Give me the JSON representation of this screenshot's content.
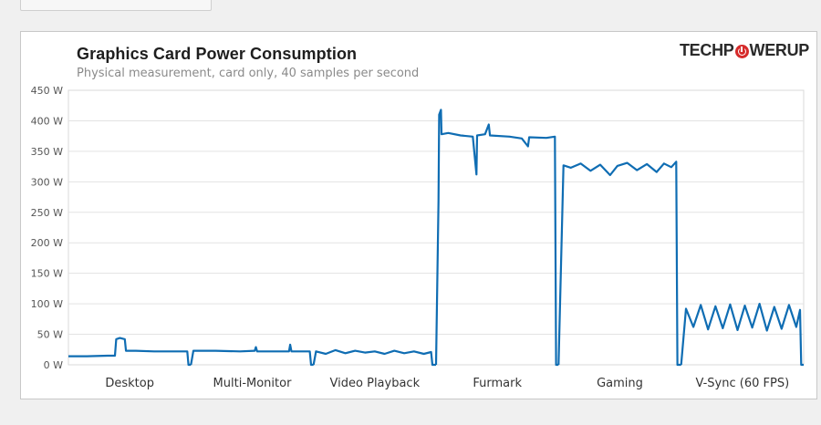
{
  "chart_data": {
    "type": "line",
    "title": "Graphics  Card  Power  Consumption",
    "subtitle": "Physical measurement, card only, 40 samples per second",
    "brand": {
      "left": "TECHP",
      "right": "WERUP",
      "accent": "#d62b2b"
    },
    "xlabel": "",
    "ylabel": "",
    "ylim": [
      0,
      450
    ],
    "yticks": [
      0,
      50,
      100,
      150,
      200,
      250,
      300,
      350,
      400,
      450
    ],
    "ytick_labels": [
      "0 W",
      "50 W",
      "100 W",
      "150 W",
      "200 W",
      "250 W",
      "300 W",
      "350 W",
      "400 W",
      "450 W"
    ],
    "categories": [
      "Desktop",
      "Multi-Monitor",
      "Video Playback",
      "Furmark",
      "Gaming",
      "V-Sync (60 FPS)"
    ],
    "grid": true,
    "legend": "none",
    "series_color": "#0f6db3",
    "segments": [
      {
        "category": "Desktop",
        "avg": 21,
        "points": [
          [
            0.0,
            14
          ],
          [
            0.02,
            14
          ],
          [
            0.15,
            14
          ],
          [
            0.32,
            15
          ],
          [
            0.38,
            15
          ],
          [
            0.39,
            42
          ],
          [
            0.42,
            44
          ],
          [
            0.46,
            42
          ],
          [
            0.47,
            23
          ],
          [
            0.55,
            23
          ],
          [
            0.7,
            22
          ],
          [
            0.85,
            22
          ],
          [
            0.97,
            22
          ],
          [
            0.98,
            0
          ],
          [
            1.0,
            0
          ]
        ]
      },
      {
        "category": "Multi-Monitor",
        "avg": 22,
        "points": [
          [
            0.0,
            0
          ],
          [
            0.02,
            23
          ],
          [
            0.2,
            23
          ],
          [
            0.4,
            22
          ],
          [
            0.52,
            23
          ],
          [
            0.53,
            29
          ],
          [
            0.54,
            22
          ],
          [
            0.8,
            22
          ],
          [
            0.81,
            33
          ],
          [
            0.82,
            22
          ],
          [
            0.97,
            22
          ],
          [
            0.98,
            0
          ],
          [
            1.0,
            0
          ]
        ]
      },
      {
        "category": "Video Playback",
        "avg": 20,
        "points": [
          [
            0.0,
            0
          ],
          [
            0.02,
            22
          ],
          [
            0.1,
            18
          ],
          [
            0.18,
            24
          ],
          [
            0.26,
            19
          ],
          [
            0.34,
            23
          ],
          [
            0.42,
            20
          ],
          [
            0.5,
            22
          ],
          [
            0.58,
            18
          ],
          [
            0.66,
            23
          ],
          [
            0.74,
            19
          ],
          [
            0.82,
            22
          ],
          [
            0.9,
            18
          ],
          [
            0.96,
            21
          ],
          [
            0.97,
            0
          ],
          [
            1.0,
            0
          ]
        ]
      },
      {
        "category": "Furmark",
        "avg": 375,
        "points": [
          [
            0.0,
            0
          ],
          [
            0.02,
            268
          ],
          [
            0.025,
            410
          ],
          [
            0.04,
            418
          ],
          [
            0.045,
            378
          ],
          [
            0.1,
            380
          ],
          [
            0.2,
            376
          ],
          [
            0.3,
            374
          ],
          [
            0.33,
            312
          ],
          [
            0.335,
            376
          ],
          [
            0.4,
            378
          ],
          [
            0.43,
            394
          ],
          [
            0.44,
            376
          ],
          [
            0.6,
            374
          ],
          [
            0.7,
            371
          ],
          [
            0.75,
            358
          ],
          [
            0.76,
            373
          ],
          [
            0.9,
            372
          ],
          [
            0.97,
            374
          ],
          [
            0.98,
            0
          ],
          [
            1.0,
            0
          ]
        ]
      },
      {
        "category": "Gaming",
        "avg": 326,
        "points": [
          [
            0.0,
            0
          ],
          [
            0.04,
            327
          ],
          [
            0.1,
            323
          ],
          [
            0.18,
            330
          ],
          [
            0.26,
            318
          ],
          [
            0.34,
            328
          ],
          [
            0.42,
            311
          ],
          [
            0.48,
            326
          ],
          [
            0.56,
            331
          ],
          [
            0.64,
            319
          ],
          [
            0.72,
            329
          ],
          [
            0.8,
            316
          ],
          [
            0.86,
            330
          ],
          [
            0.92,
            324
          ],
          [
            0.96,
            333
          ],
          [
            0.97,
            0
          ],
          [
            1.0,
            0
          ]
        ]
      },
      {
        "category": "V-Sync (60 FPS)",
        "avg": 78,
        "points": [
          [
            0.0,
            0
          ],
          [
            0.04,
            92
          ],
          [
            0.1,
            62
          ],
          [
            0.16,
            98
          ],
          [
            0.22,
            58
          ],
          [
            0.28,
            96
          ],
          [
            0.34,
            60
          ],
          [
            0.4,
            99
          ],
          [
            0.46,
            57
          ],
          [
            0.52,
            97
          ],
          [
            0.58,
            61
          ],
          [
            0.64,
            100
          ],
          [
            0.7,
            56
          ],
          [
            0.76,
            95
          ],
          [
            0.82,
            59
          ],
          [
            0.88,
            98
          ],
          [
            0.94,
            62
          ],
          [
            0.97,
            90
          ],
          [
            0.98,
            0
          ],
          [
            1.0,
            0
          ]
        ]
      }
    ]
  }
}
